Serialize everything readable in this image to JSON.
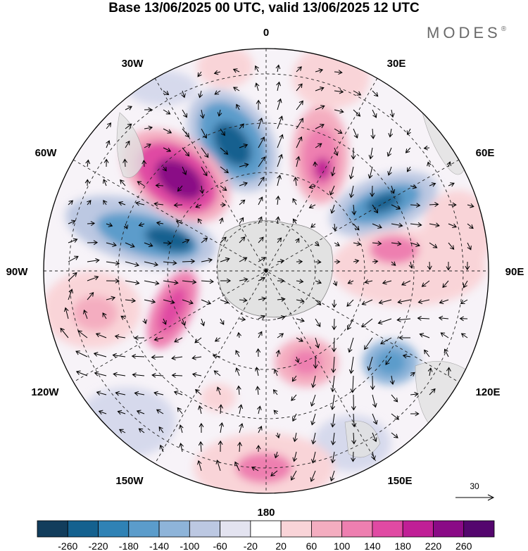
{
  "title": "Base 13/06/2025 00 UTC, valid 13/06/2025 12 UTC",
  "brand": {
    "name": "MODES",
    "mark": "®"
  },
  "map": {
    "projection": "south polar stereographic",
    "longitude_labels": {
      "top": "0",
      "top_right": "30E",
      "right_upper": "60E",
      "right": "90E",
      "right_lower": "120E",
      "bottom_right": "150E",
      "bottom": "180",
      "bottom_left": "150W",
      "left_lower": "120W",
      "left": "90W",
      "left_upper": "60W",
      "top_left": "30W"
    },
    "vector_scale_label": "30",
    "colors": {
      "negative_strong": "#1a4a6e",
      "positive_strong": "#5a0a6e",
      "neutral": "#ffffff",
      "land": "#e2e2e2"
    }
  },
  "colorbar": {
    "ticks": [
      "-260",
      "-220",
      "-180",
      "-140",
      "-100",
      "-60",
      "-20",
      "20",
      "60",
      "100",
      "140",
      "180",
      "220",
      "260"
    ],
    "colors": [
      "#123d5c",
      "#14618f",
      "#2f82b5",
      "#5b9ccb",
      "#8eb4d9",
      "#bcc8e2",
      "#e3e3f0",
      "#ffffff",
      "#f9d4d8",
      "#f4adc0",
      "#ee7fb0",
      "#e04aa3",
      "#c01f96",
      "#8a0a86",
      "#54066e"
    ]
  }
}
